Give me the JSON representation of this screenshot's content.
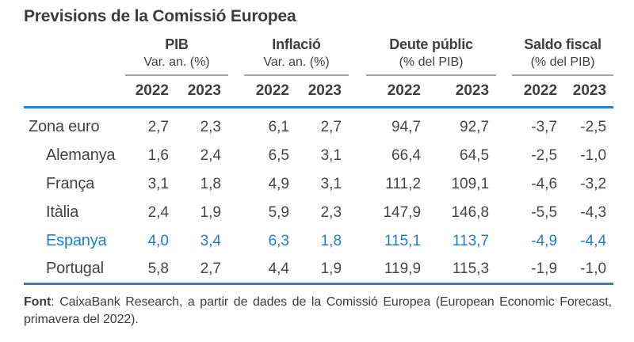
{
  "chart_data": {
    "type": "table",
    "title": "Previsions de la Comissió Europea",
    "column_groups": [
      {
        "name": "PIB",
        "subtitle": "Var. an. (%)",
        "years": [
          "2022",
          "2023"
        ]
      },
      {
        "name": "Inflació",
        "subtitle": "Var. an. (%)",
        "years": [
          "2022",
          "2023"
        ]
      },
      {
        "name": "Deute públic",
        "subtitle": "(% del PIB)",
        "years": [
          "2022",
          "2023"
        ]
      },
      {
        "name": "Saldo fiscal",
        "subtitle": "(% del PIB)",
        "years": [
          "2022",
          "2023"
        ]
      }
    ],
    "rows": [
      {
        "name": "Zona euro",
        "indent": false,
        "highlight": false,
        "values": [
          "2,7",
          "2,3",
          "6,1",
          "2,7",
          "94,7",
          "92,7",
          "-3,7",
          "-2,5"
        ]
      },
      {
        "name": "Alemanya",
        "indent": true,
        "highlight": false,
        "values": [
          "1,6",
          "2,4",
          "6,5",
          "3,1",
          "66,4",
          "64,5",
          "-2,5",
          "-1,0"
        ]
      },
      {
        "name": "França",
        "indent": true,
        "highlight": false,
        "values": [
          "3,1",
          "1,8",
          "4,9",
          "3,1",
          "111,2",
          "109,1",
          "-4,6",
          "-3,2"
        ]
      },
      {
        "name": "Itàlia",
        "indent": true,
        "highlight": false,
        "values": [
          "2,4",
          "1,9",
          "5,9",
          "2,3",
          "147,9",
          "146,8",
          "-5,5",
          "-4,3"
        ]
      },
      {
        "name": "Espanya",
        "indent": true,
        "highlight": true,
        "values": [
          "4,0",
          "3,4",
          "6,3",
          "1,8",
          "115,1",
          "113,7",
          "-4,9",
          "-4,4"
        ]
      },
      {
        "name": "Portugal",
        "indent": true,
        "highlight": false,
        "values": [
          "5,8",
          "2,7",
          "4,4",
          "1,9",
          "119,9",
          "115,3",
          "-1,9",
          "-1,0"
        ]
      }
    ],
    "footnote": {
      "label": "Font",
      "text": ": CaixaBank Research, a partir de dades de la Comissió Europea (European Economic Forecast, primavera del 2022)."
    },
    "colors": {
      "accent_blue": "#1d7dc9",
      "rule_blue": "#2b82c9",
      "rule_gray": "#a6a6a6",
      "text_dark": "#3d3d3d"
    }
  }
}
